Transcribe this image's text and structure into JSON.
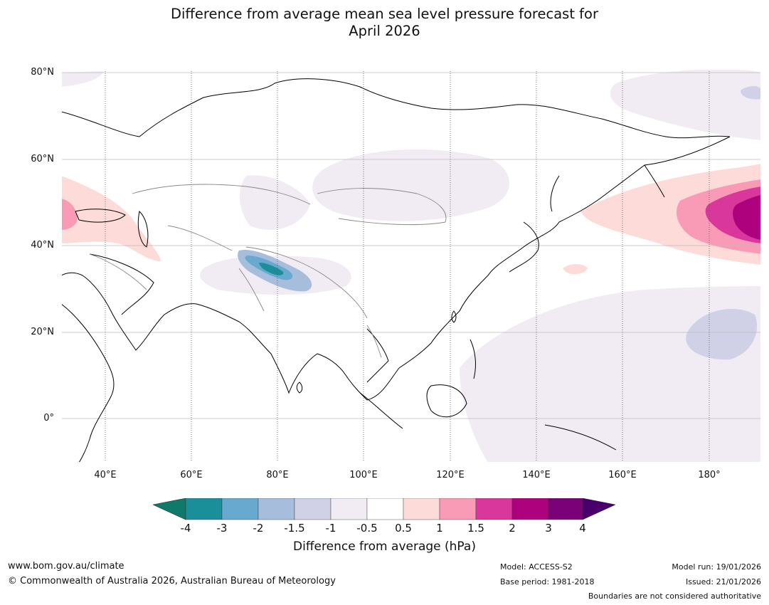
{
  "title_line1": "Difference from average mean sea level pressure forecast for",
  "title_line2": "April 2026",
  "map": {
    "lat_labels": [
      "80°N",
      "60°N",
      "40°N",
      "20°N",
      "0°"
    ],
    "lon_labels": [
      "40°E",
      "60°E",
      "80°E",
      "100°E",
      "120°E",
      "140°E",
      "160°E",
      "180°"
    ]
  },
  "colorbar": {
    "tick_labels": [
      "-4",
      "-3",
      "-2",
      "-1.5",
      "-1",
      "-0.5",
      "0.5",
      "1",
      "1.5",
      "2",
      "3",
      "4"
    ],
    "colors": [
      "#0f7a6a",
      "#1b8f99",
      "#67a9cf",
      "#a6bddb",
      "#d0d1e6",
      "#f1ebf4",
      "#ffffff",
      "#fddbd8",
      "#f99bb6",
      "#d9379b",
      "#ad017e",
      "#7a0177",
      "#4a006a"
    ],
    "label": "Difference from average (hPa)"
  },
  "footer": {
    "website": "www.bom.gov.au/climate",
    "copyright": "© Commonwealth of Australia 2026, Australian Bureau of Meteorology",
    "model": "Model: ACCESS-S2",
    "base_period": "Base period: 1981-2018",
    "model_run": "Model run: 19/01/2026",
    "issued": "Issued: 21/01/2026",
    "disclaimer": "Boundaries are not considered authoritative"
  }
}
